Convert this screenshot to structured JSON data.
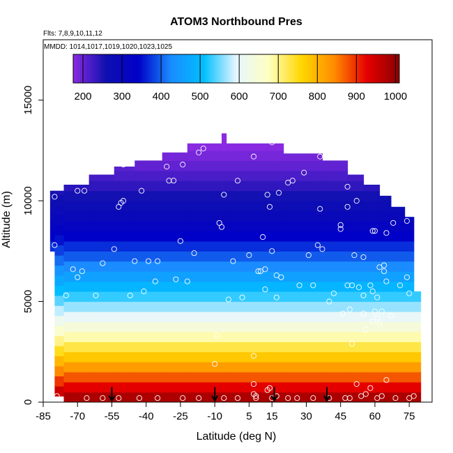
{
  "chart_data": {
    "type": "heatmap",
    "title": "ATOM3 Northbound Pres",
    "flights_label": "Flts: 7,8,9,10,11,12",
    "dates_label": "MMDD: 1014,1017,1019,1020,1023,1025",
    "xlabel": "Latitude (deg N)",
    "ylabel": "Altitude (m)",
    "xlim": [
      -85,
      85
    ],
    "ylim": [
      0,
      18000
    ],
    "x_ticks": [
      "-85",
      "-70",
      "-55",
      "-40",
      "-25",
      "-10",
      "5",
      "15",
      "30",
      "45",
      "60",
      "75"
    ],
    "x_tick_values": [
      -85,
      -70,
      -55,
      -40,
      -25,
      -10,
      5,
      15,
      30,
      45,
      60,
      75
    ],
    "y_ticks": [
      "0",
      "5000",
      "10000",
      "15000"
    ],
    "y_tick_values": [
      0,
      5000,
      10000,
      15000
    ],
    "colorbar": {
      "ticks": [
        "200",
        "300",
        "400",
        "500",
        "600",
        "700",
        "800",
        "900",
        "1000"
      ],
      "tick_values": [
        200,
        300,
        400,
        500,
        600,
        700,
        800,
        900,
        1000
      ],
      "range": [
        175,
        1010
      ],
      "colors": [
        "#8a2be2",
        "#1010b0",
        "#0000c8",
        "#1a8cff",
        "#00bfff",
        "#e6f6ff",
        "#ffffc0",
        "#ffd700",
        "#ff8c00",
        "#e60000",
        "#8b0000"
      ]
    },
    "pressure_profile": {
      "altitude": [
        0,
        500,
        1000,
        1500,
        2000,
        3000,
        4000,
        5000,
        6000,
        7000,
        8000,
        9000,
        10000,
        11000,
        12000,
        13000
      ],
      "pressure": [
        1005,
        955,
        900,
        850,
        800,
        705,
        620,
        545,
        475,
        410,
        355,
        305,
        265,
        228,
        195,
        168
      ]
    },
    "coverage": [
      {
        "lat_range": [
          -82,
          -80
        ],
        "alt_top": 10500,
        "alt_bottom": 7500
      },
      {
        "lat_range": [
          -80,
          -76
        ],
        "alt_top": 10500,
        "alt_bottom": 300
      },
      {
        "lat_range": [
          -76,
          -65
        ],
        "alt_top": 10800,
        "alt_bottom": 0
      },
      {
        "lat_range": [
          -65,
          -54
        ],
        "alt_top": 11300,
        "alt_bottom": 0
      },
      {
        "lat_range": [
          -54,
          -45
        ],
        "alt_top": 11700,
        "alt_bottom": 0
      },
      {
        "lat_range": [
          -45,
          -33
        ],
        "alt_top": 12000,
        "alt_bottom": 0
      },
      {
        "lat_range": [
          -33,
          -22
        ],
        "alt_top": 12400,
        "alt_bottom": 0
      },
      {
        "lat_range": [
          -22,
          -7
        ],
        "alt_top": 12850,
        "alt_bottom": 0
      },
      {
        "lat_range": [
          -7,
          -5
        ],
        "alt_top": 13350,
        "alt_bottom": 0
      },
      {
        "lat_range": [
          -5,
          20
        ],
        "alt_top": 12850,
        "alt_bottom": 0
      },
      {
        "lat_range": [
          20,
          37
        ],
        "alt_top": 12350,
        "alt_bottom": 0
      },
      {
        "lat_range": [
          37,
          48
        ],
        "alt_top": 12000,
        "alt_bottom": 0
      },
      {
        "lat_range": [
          48,
          55
        ],
        "alt_top": 11300,
        "alt_bottom": 0
      },
      {
        "lat_range": [
          55,
          62
        ],
        "alt_top": 10800,
        "alt_bottom": 0
      },
      {
        "lat_range": [
          62,
          67
        ],
        "alt_top": 10250,
        "alt_bottom": 0
      },
      {
        "lat_range": [
          67,
          73
        ],
        "alt_top": 9700,
        "alt_bottom": 0
      },
      {
        "lat_range": [
          73,
          77
        ],
        "alt_top": 9200,
        "alt_bottom": 0
      },
      {
        "lat_range": [
          77,
          80
        ],
        "alt_top": 5500,
        "alt_bottom": 0
      }
    ],
    "airport_arrows_lat": [
      -55,
      -10,
      16,
      39
    ],
    "sample_points": [
      [
        -80,
        10200
      ],
      [
        -80,
        7800
      ],
      [
        -75,
        5300
      ],
      [
        -72,
        6600
      ],
      [
        -70,
        6200
      ],
      [
        -68,
        6500
      ],
      [
        -70,
        10500
      ],
      [
        -67,
        10500
      ],
      [
        -62,
        5300
      ],
      [
        -59,
        6900
      ],
      [
        -54,
        7600
      ],
      [
        -50,
        11800
      ],
      [
        -52,
        9700
      ],
      [
        -51,
        9900
      ],
      [
        -50,
        10000
      ],
      [
        -47,
        5300
      ],
      [
        -45,
        7000
      ],
      [
        -42,
        10500
      ],
      [
        -41,
        5500
      ],
      [
        -39,
        7000
      ],
      [
        -36,
        6000
      ],
      [
        -35,
        7000
      ],
      [
        -31,
        11700
      ],
      [
        -30,
        11000
      ],
      [
        -28,
        11000
      ],
      [
        -27,
        6100
      ],
      [
        -25,
        8000
      ],
      [
        -24,
        11800
      ],
      [
        -22,
        6000
      ],
      [
        -19,
        7400
      ],
      [
        -17,
        12400
      ],
      [
        -15,
        12600
      ],
      [
        -12,
        13200
      ],
      [
        -8,
        8900
      ],
      [
        -7,
        8700
      ],
      [
        -6,
        10300
      ],
      [
        -4,
        5100
      ],
      [
        -2,
        7000
      ],
      [
        0,
        11000
      ],
      [
        2,
        5200
      ],
      [
        5,
        7300
      ],
      [
        7,
        12200
      ],
      [
        9,
        6500
      ],
      [
        10,
        6500
      ],
      [
        11,
        8200
      ],
      [
        12,
        6600
      ],
      [
        12,
        5600
      ],
      [
        13,
        10300
      ],
      [
        14,
        9700
      ],
      [
        15,
        12900
      ],
      [
        15,
        7500
      ],
      [
        17,
        6300
      ],
      [
        17,
        5200
      ],
      [
        18,
        10400
      ],
      [
        19,
        6200
      ],
      [
        22,
        10900
      ],
      [
        24,
        11000
      ],
      [
        27,
        5800
      ],
      [
        29,
        11400
      ],
      [
        31,
        7300
      ],
      [
        33,
        5800
      ],
      [
        35,
        7800
      ],
      [
        36,
        12200
      ],
      [
        36,
        9600
      ],
      [
        37,
        7600
      ],
      [
        40,
        5000
      ],
      [
        42,
        5400
      ],
      [
        45,
        8600
      ],
      [
        45,
        8800
      ],
      [
        46,
        4400
      ],
      [
        48,
        5800
      ],
      [
        48,
        9700
      ],
      [
        48,
        10700
      ],
      [
        49,
        4600
      ],
      [
        50,
        5800
      ],
      [
        51,
        7300
      ],
      [
        52,
        10000
      ],
      [
        52,
        12000
      ],
      [
        53,
        5700
      ],
      [
        55,
        5300
      ],
      [
        55,
        7200
      ],
      [
        55,
        4400
      ],
      [
        56,
        3600
      ],
      [
        58,
        5800
      ],
      [
        59,
        5500
      ],
      [
        59,
        4000
      ],
      [
        59,
        8500
      ],
      [
        60,
        8500
      ],
      [
        60,
        4500
      ],
      [
        61,
        5200
      ],
      [
        61,
        4200
      ],
      [
        62,
        6700
      ],
      [
        62,
        3900
      ],
      [
        63,
        4500
      ],
      [
        64,
        6500
      ],
      [
        64,
        6800
      ],
      [
        65,
        8400
      ],
      [
        65,
        6000
      ],
      [
        67,
        4300
      ],
      [
        68,
        8900
      ],
      [
        71,
        5800
      ],
      [
        74,
        6200
      ],
      [
        74,
        9000
      ],
      [
        75,
        5400
      ],
      [
        -79,
        300
      ],
      [
        -66,
        200
      ],
      [
        -59,
        200
      ],
      [
        -52,
        200
      ],
      [
        -43,
        200
      ],
      [
        -35,
        200
      ],
      [
        -24,
        200
      ],
      [
        -17,
        200
      ],
      [
        -9,
        3300
      ],
      [
        -6,
        200
      ],
      [
        0,
        200
      ],
      [
        7,
        2300
      ],
      [
        7,
        900
      ],
      [
        7,
        400
      ],
      [
        8,
        200
      ],
      [
        8,
        300
      ],
      [
        13,
        600
      ],
      [
        14,
        700
      ],
      [
        15,
        200
      ],
      [
        17,
        300
      ],
      [
        22,
        200
      ],
      [
        26,
        200
      ],
      [
        33,
        200
      ],
      [
        40,
        200
      ],
      [
        47,
        200
      ],
      [
        49,
        200
      ],
      [
        52,
        900
      ],
      [
        54,
        300
      ],
      [
        56,
        400
      ],
      [
        58,
        700
      ],
      [
        61,
        200
      ],
      [
        63,
        300
      ],
      [
        65,
        1100
      ],
      [
        69,
        200
      ],
      [
        75,
        200
      ],
      [
        77,
        300
      ],
      [
        -10,
        1900
      ],
      [
        50,
        2900
      ]
    ]
  }
}
